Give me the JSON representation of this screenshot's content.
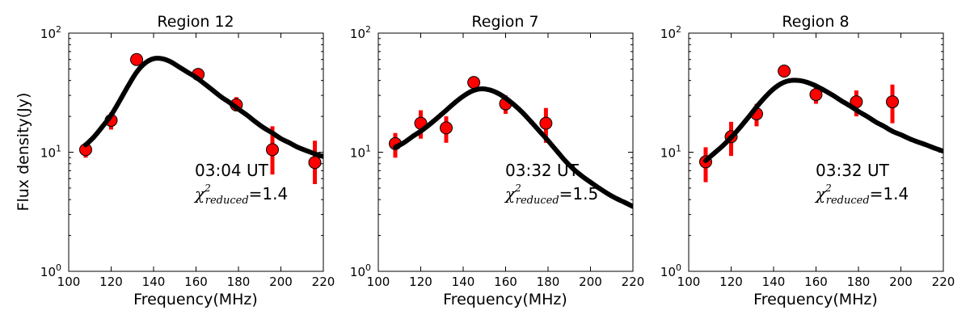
{
  "figure": {
    "ylabel": "Flux density(Jy)",
    "xlabel": "Frequency(MHz)",
    "x_ticks": [
      "100",
      "120",
      "140",
      "160",
      "180",
      "200",
      "220"
    ],
    "y_ticks": [
      {
        "base": "10",
        "exp": "0"
      },
      {
        "base": "10",
        "exp": "1"
      },
      {
        "base": "10",
        "exp": "2"
      }
    ]
  },
  "colors": {
    "points": "#ff0000",
    "errorbars": "#ff0000",
    "fit": "#000000"
  },
  "chart_data": [
    {
      "type": "scatter",
      "title": "Region 12",
      "xlabel": "Frequency(MHz)",
      "ylabel": "Flux density(Jy)",
      "xlim": [
        100,
        220
      ],
      "ylim": [
        1,
        100
      ],
      "yscale": "log",
      "time_label": "03:04 UT",
      "chi_symbol": "χ",
      "chi_sup": "2",
      "chi_sub": "reduced",
      "chi_value": "=1.4",
      "points": [
        {
          "x": 108,
          "y": 10.5,
          "lo": 9.0,
          "hi": 12.0
        },
        {
          "x": 120,
          "y": 18.5,
          "lo": 15.5,
          "hi": 21.5
        },
        {
          "x": 132,
          "y": 60,
          "lo": 56,
          "hi": 64
        },
        {
          "x": 161,
          "y": 45,
          "lo": 41,
          "hi": 49
        },
        {
          "x": 179,
          "y": 25,
          "lo": 22,
          "hi": 29
        },
        {
          "x": 196,
          "y": 10.5,
          "lo": 6.5,
          "hi": 16.5
        },
        {
          "x": 216,
          "y": 8.2,
          "lo": 5.4,
          "hi": 12.5
        }
      ],
      "fit": {
        "x": [
          108,
          112,
          116,
          120,
          124,
          128,
          132,
          136,
          140,
          144,
          148,
          152,
          156,
          160,
          164,
          168,
          172,
          176,
          180,
          184,
          188,
          192,
          196,
          200,
          204,
          208,
          212,
          216,
          220
        ],
        "y": [
          11.5,
          13.5,
          16.5,
          20.5,
          27,
          36,
          47,
          56,
          61,
          61,
          57.5,
          52,
          47,
          42.5,
          37.5,
          33,
          29,
          26,
          23,
          20.5,
          18,
          16,
          14.5,
          13,
          12,
          11,
          10.3,
          9.7,
          9.2
        ]
      }
    },
    {
      "type": "scatter",
      "title": "Region 7",
      "xlabel": "Frequency(MHz)",
      "ylabel": "",
      "xlim": [
        100,
        220
      ],
      "ylim": [
        1,
        100
      ],
      "yscale": "log",
      "time_label": "03:32 UT",
      "chi_symbol": "χ",
      "chi_sup": "2",
      "chi_sub": "reduced",
      "chi_value": "=1.5",
      "points": [
        {
          "x": 108,
          "y": 11.8,
          "lo": 9.0,
          "hi": 14.5
        },
        {
          "x": 120,
          "y": 17.5,
          "lo": 13.0,
          "hi": 22.5
        },
        {
          "x": 132,
          "y": 16,
          "lo": 12,
          "hi": 20
        },
        {
          "x": 145,
          "y": 38.5,
          "lo": 36,
          "hi": 41
        },
        {
          "x": 160,
          "y": 25.5,
          "lo": 21,
          "hi": 30
        },
        {
          "x": 179,
          "y": 17.5,
          "lo": 12,
          "hi": 23.5
        }
      ],
      "fit": {
        "x": [
          108,
          112,
          116,
          120,
          124,
          128,
          132,
          136,
          140,
          144,
          148,
          152,
          156,
          160,
          164,
          168,
          172,
          176,
          180,
          184,
          188,
          192,
          196,
          200,
          204,
          208,
          212,
          216,
          220
        ],
        "y": [
          11,
          12,
          13.5,
          15,
          17,
          19.5,
          22.5,
          26,
          29.5,
          32.5,
          34,
          33.5,
          31.5,
          28.5,
          25,
          21.5,
          18,
          15,
          12.5,
          10.3,
          8.5,
          7.2,
          6.3,
          5.6,
          5.0,
          4.5,
          4.1,
          3.8,
          3.5
        ]
      }
    },
    {
      "type": "scatter",
      "title": "Region 8",
      "xlabel": "Frequency(MHz)",
      "ylabel": "",
      "xlim": [
        100,
        220
      ],
      "ylim": [
        1,
        100
      ],
      "yscale": "log",
      "time_label": "03:32 UT",
      "chi_symbol": "χ",
      "chi_sup": "2",
      "chi_sub": "reduced",
      "chi_value": "=1.4",
      "points": [
        {
          "x": 108,
          "y": 8.3,
          "lo": 5.6,
          "hi": 11.0
        },
        {
          "x": 120,
          "y": 13.5,
          "lo": 9.3,
          "hi": 18.0
        },
        {
          "x": 132,
          "y": 21,
          "lo": 16.5,
          "hi": 25.5
        },
        {
          "x": 145,
          "y": 48,
          "lo": 45,
          "hi": 51
        },
        {
          "x": 160,
          "y": 30.5,
          "lo": 25.5,
          "hi": 35.5
        },
        {
          "x": 179,
          "y": 26.5,
          "lo": 20,
          "hi": 33
        },
        {
          "x": 196,
          "y": 26.5,
          "lo": 17.5,
          "hi": 37
        }
      ],
      "fit": {
        "x": [
          108,
          112,
          116,
          120,
          124,
          128,
          132,
          136,
          140,
          144,
          148,
          152,
          156,
          160,
          164,
          168,
          172,
          176,
          180,
          184,
          188,
          192,
          196,
          200,
          204,
          208,
          212,
          216,
          220
        ],
        "y": [
          8.5,
          9.8,
          11.3,
          13.3,
          16,
          19.5,
          24,
          29,
          34,
          38,
          40,
          40,
          38.5,
          36,
          33,
          30,
          27,
          24.5,
          22,
          20,
          18,
          16.5,
          15,
          14,
          13,
          12.2,
          11.5,
          10.8,
          10.2
        ]
      }
    }
  ]
}
